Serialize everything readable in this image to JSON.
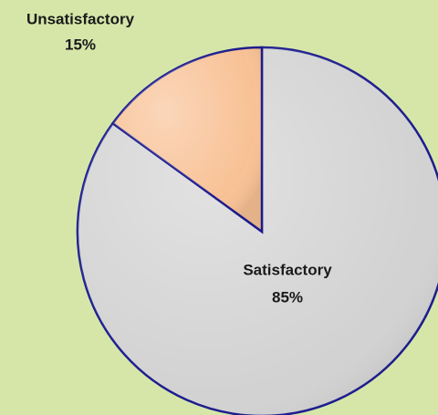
{
  "chart_data": {
    "type": "pie",
    "categories": [
      "Satisfactory",
      "Unsatisfactory"
    ],
    "values": [
      85,
      15
    ],
    "value_labels": [
      "85%",
      "15%"
    ],
    "colors": [
      "#d2d2d2",
      "#f8c195"
    ]
  }
}
